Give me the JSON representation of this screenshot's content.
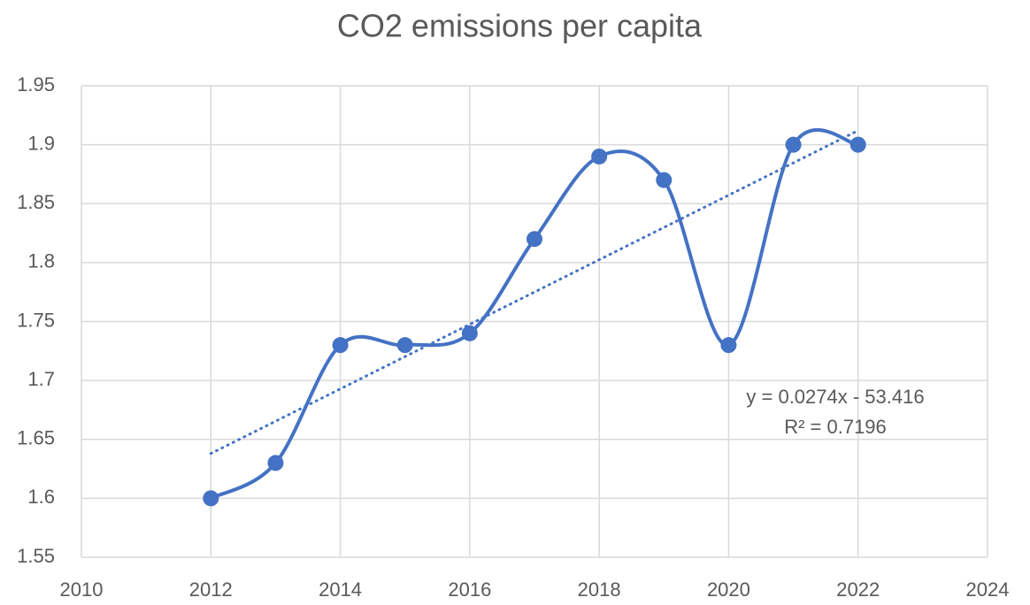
{
  "chart_data": {
    "type": "scatter-smooth",
    "title": "CO2 emissions per capita",
    "x": [
      2012,
      2013,
      2014,
      2015,
      2016,
      2017,
      2018,
      2019,
      2020,
      2021,
      2022
    ],
    "series": [
      {
        "name": "CO2 emissions per capita",
        "color": "#4472c4",
        "values": [
          1.6,
          1.63,
          1.73,
          1.73,
          1.74,
          1.82,
          1.89,
          1.87,
          1.73,
          1.9,
          1.9
        ]
      }
    ],
    "trendline": {
      "color": "#4472c4",
      "x": [
        2012,
        2022
      ],
      "values": [
        1.638,
        1.912
      ],
      "equation": "y = 0.0274x - 53.416",
      "r_squared": "R² = 0.7196"
    },
    "xlim": [
      2010,
      2024
    ],
    "xticks": [
      2010,
      2012,
      2014,
      2016,
      2018,
      2020,
      2022,
      2024
    ],
    "ylim": [
      1.55,
      1.95
    ],
    "yticks": [
      1.55,
      1.6,
      1.65,
      1.7,
      1.75,
      1.8,
      1.85,
      1.9,
      1.95
    ],
    "grid": true
  }
}
